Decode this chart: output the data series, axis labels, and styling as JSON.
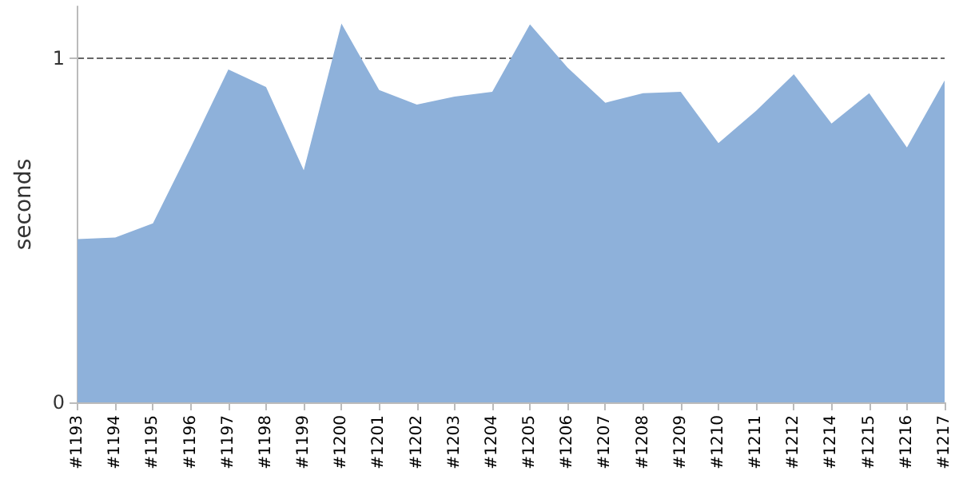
{
  "chart_data": {
    "type": "area",
    "ylabel": "seconds",
    "categories": [
      "#1193",
      "#1194",
      "#1195",
      "#1196",
      "#1197",
      "#1198",
      "#1199",
      "#1200",
      "#1201",
      "#1202",
      "#1203",
      "#1204",
      "#1205",
      "#1206",
      "#1207",
      "#1208",
      "#1209",
      "#1210",
      "#1211",
      "#1212",
      "#1214",
      "#1215",
      "#1216",
      "#1217"
    ],
    "values": [
      0.474,
      0.479,
      0.52,
      0.74,
      0.967,
      0.916,
      0.674,
      1.1,
      0.907,
      0.865,
      0.888,
      0.902,
      1.098,
      0.972,
      0.87,
      0.898,
      0.902,
      0.753,
      0.847,
      0.953,
      0.81,
      0.898,
      0.74,
      0.935
    ],
    "color": "#8eb1da",
    "ylim": [
      0,
      1.15
    ],
    "yticks": [
      0,
      1
    ],
    "grid": "y",
    "line_style": "dashed"
  }
}
